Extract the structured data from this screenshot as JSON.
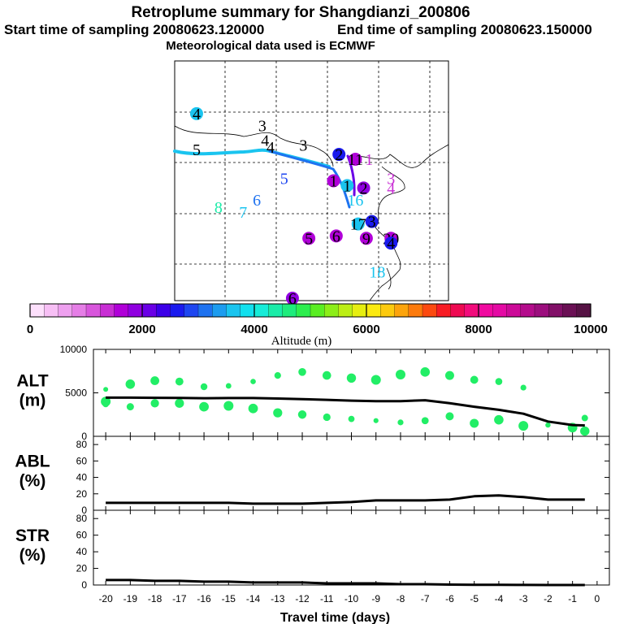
{
  "title": "Retroplume summary for Shangdianzi_200806",
  "start_label": "Start time of sampling 20080623.120000",
  "end_label": "End time of sampling 20080623.150000",
  "met_label": "Meteorological data used is ECMWF",
  "colorbar": {
    "label": "Altitude (m)",
    "ticks": [
      "0",
      "2000",
      "4000",
      "6000",
      "8000",
      "10000"
    ],
    "min": 0,
    "max": 10000,
    "colors": [
      "#fde0fc",
      "#f7bff5",
      "#eea0ef",
      "#e57ee6",
      "#d856dc",
      "#c82ed4",
      "#b000d8",
      "#9000e0",
      "#6a00e6",
      "#3c00e8",
      "#1a1aee",
      "#1e46f0",
      "#1e72f0",
      "#1c9cef",
      "#1ac4ef",
      "#12e0ee",
      "#16ecd8",
      "#1aeca8",
      "#1eec7c",
      "#2cee4e",
      "#5aee22",
      "#8cee18",
      "#bcee14",
      "#e6ee10",
      "#fbea10",
      "#fcca0e",
      "#fca40c",
      "#fc7a0c",
      "#fc4a10",
      "#f81c24",
      "#ee0a52",
      "#f20c7c",
      "#f00aa0",
      "#e40aa4",
      "#cc0a98",
      "#b40c8c",
      "#9c0e7e",
      "#821068",
      "#6a1054",
      "#561244"
    ]
  },
  "map_labels": [
    {
      "text": "4",
      "lon": 0.08,
      "lat": 0.22,
      "color": "#1ac4ef",
      "dot": true
    },
    {
      "text": "5",
      "lon": 0.08,
      "lat": 0.37,
      "color": "#000000",
      "dot": false
    },
    {
      "text": "3",
      "lon": 0.32,
      "lat": 0.27,
      "color": "#000000",
      "dot": false
    },
    {
      "text": "4",
      "lon": 0.33,
      "lat": 0.33,
      "color": "#000000",
      "dot": false
    },
    {
      "text": "4",
      "lon": 0.35,
      "lat": 0.36,
      "color": "#000000",
      "dot": false
    },
    {
      "text": "3",
      "lon": 0.47,
      "lat": 0.35,
      "color": "#000000",
      "dot": false
    },
    {
      "text": "5",
      "lon": 0.4,
      "lat": 0.49,
      "color": "#1e46f0",
      "dot": false
    },
    {
      "text": "6",
      "lon": 0.3,
      "lat": 0.58,
      "color": "#1e72f0",
      "dot": false
    },
    {
      "text": "8",
      "lon": 0.16,
      "lat": 0.61,
      "color": "#1aeca8",
      "dot": false
    },
    {
      "text": "7",
      "lon": 0.25,
      "lat": 0.63,
      "color": "#1ac4ef",
      "dot": false
    },
    {
      "text": "5",
      "lon": 0.49,
      "lat": 0.74,
      "color": "#b000d8",
      "dot": true
    },
    {
      "text": "6",
      "lon": 0.43,
      "lat": 0.99,
      "color": "#9000e0",
      "dot": true
    },
    {
      "text": "2",
      "lon": 0.6,
      "lat": 0.39,
      "color": "#1a1aee",
      "dot": true
    },
    {
      "text": "11",
      "lon": 0.66,
      "lat": 0.41,
      "color": "#b000d8",
      "dot": true
    },
    {
      "text": "1",
      "lon": 0.71,
      "lat": 0.41,
      "color": "#c82ed4",
      "dot": false
    },
    {
      "text": "3",
      "lon": 0.79,
      "lat": 0.49,
      "color": "#c82ed4",
      "dot": false
    },
    {
      "text": "4",
      "lon": 0.79,
      "lat": 0.53,
      "color": "#c82ed4",
      "dot": false
    },
    {
      "text": "1",
      "lon": 0.58,
      "lat": 0.5,
      "color": "#b000d8",
      "dot": true
    },
    {
      "text": "1",
      "lon": 0.63,
      "lat": 0.52,
      "color": "#1ac4ef",
      "dot": true
    },
    {
      "text": "2",
      "lon": 0.69,
      "lat": 0.53,
      "color": "#9000e0",
      "dot": true
    },
    {
      "text": "16",
      "lon": 0.66,
      "lat": 0.58,
      "color": "#1ac4ef",
      "dot": false
    },
    {
      "text": "17",
      "lon": 0.67,
      "lat": 0.68,
      "color": "#1ac4ef",
      "dot": true
    },
    {
      "text": "3",
      "lon": 0.72,
      "lat": 0.67,
      "color": "#1a1aee",
      "dot": true
    },
    {
      "text": "6",
      "lon": 0.59,
      "lat": 0.73,
      "color": "#b000d8",
      "dot": true
    },
    {
      "text": "9",
      "lon": 0.7,
      "lat": 0.74,
      "color": "#b000d8",
      "dot": true
    },
    {
      "text": "20",
      "lon": 0.79,
      "lat": 0.74,
      "color": "#b000d8",
      "dot": true
    },
    {
      "text": "4",
      "lon": 0.79,
      "lat": 0.76,
      "color": "#1a1aee",
      "dot": true
    },
    {
      "text": "18",
      "lon": 0.74,
      "lat": 0.88,
      "color": "#1ac4ef",
      "dot": false
    }
  ],
  "chart_data": [
    {
      "type": "scatter",
      "name": "ALT",
      "ylabel": "ALT\n(m)",
      "ylim": [
        0,
        10000
      ],
      "yticks": [
        0,
        5000,
        10000
      ],
      "xlim": [
        -20.5,
        0.5
      ],
      "mean_line": {
        "x": [
          -20,
          -19,
          -18,
          -17,
          -16,
          -15,
          -14,
          -13,
          -12,
          -11,
          -10,
          -9,
          -8,
          -7,
          -6,
          -5,
          -4,
          -3,
          -2,
          -1,
          -0.5
        ],
        "y": [
          4450,
          4450,
          4430,
          4420,
          4380,
          4400,
          4400,
          4350,
          4280,
          4200,
          4100,
          4050,
          4050,
          4150,
          3800,
          3400,
          3050,
          2600,
          1700,
          1300,
          1250
        ]
      },
      "scatter": {
        "x": [
          -20,
          -20,
          -20,
          -19,
          -19,
          -18,
          -18,
          -17,
          -17,
          -16,
          -16,
          -15,
          -15,
          -14,
          -14,
          -13,
          -13,
          -12,
          -12,
          -11,
          -11,
          -10,
          -10,
          -9,
          -9,
          -8,
          -8,
          -7,
          -7,
          -6,
          -6,
          -5,
          -5,
          -4,
          -4,
          -3,
          -3,
          -2,
          -1,
          -0.5,
          -0.5
        ],
        "y": [
          5400,
          4000,
          3700,
          6000,
          3400,
          6400,
          3800,
          6300,
          3800,
          5700,
          3400,
          5800,
          3500,
          6300,
          3200,
          7000,
          2700,
          7400,
          2500,
          7000,
          2200,
          6700,
          2000,
          6500,
          1800,
          7100,
          1600,
          7400,
          1800,
          7000,
          2300,
          6500,
          1500,
          6300,
          1900,
          5600,
          1200,
          1300,
          1000,
          2100,
          600
        ],
        "color": "#22ee66"
      }
    },
    {
      "type": "line",
      "name": "ABL",
      "ylabel": "ABL\n(%)",
      "ylim": [
        0,
        90
      ],
      "yticks": [
        0,
        20,
        40,
        60,
        80
      ],
      "xlim": [
        -20.5,
        0.5
      ],
      "x": [
        -20,
        -19,
        -18,
        -17,
        -16,
        -15,
        -14,
        -13,
        -12,
        -11,
        -10,
        -9,
        -8,
        -7,
        -6,
        -5,
        -4,
        -3,
        -2,
        -1,
        -0.5
      ],
      "y": [
        9,
        9,
        9,
        9,
        9,
        9,
        8,
        8,
        8,
        9,
        10,
        12,
        12,
        12,
        13,
        17,
        18,
        16,
        13,
        13,
        13
      ]
    },
    {
      "type": "line",
      "name": "STR",
      "ylabel": "STR\n(%)",
      "ylim": [
        0,
        90
      ],
      "yticks": [
        0,
        20,
        40,
        60,
        80
      ],
      "xlim": [
        -20.5,
        0.5
      ],
      "xticks": [
        "-20",
        "-19",
        "-18",
        "-17",
        "-16",
        "-15",
        "-14",
        "-13",
        "-12",
        "-11",
        "-10",
        "-9",
        "-8",
        "-7",
        "-6",
        "-5",
        "-4",
        "-3",
        "-2",
        "-1",
        "0"
      ],
      "xlabel": "Travel time (days)",
      "x": [
        -20,
        -19,
        -18,
        -17,
        -16,
        -15,
        -14,
        -13,
        -12,
        -11,
        -10,
        -9,
        -8,
        -7,
        -6,
        -5,
        -4,
        -3,
        -2,
        -1,
        -0.5
      ],
      "y": [
        6,
        6,
        5,
        5,
        4,
        4,
        3,
        3,
        3,
        2,
        2,
        2,
        1,
        1,
        0.5,
        0.3,
        0.2,
        0.1,
        0,
        0,
        0
      ]
    }
  ]
}
